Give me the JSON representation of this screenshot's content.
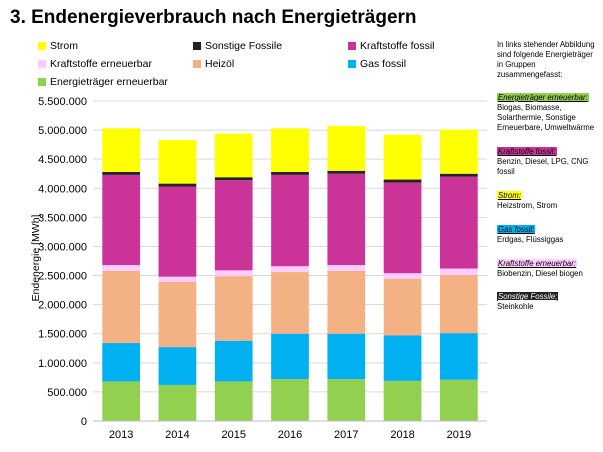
{
  "page": {
    "title": "3. Endenergieverbrauch nach Energieträgern"
  },
  "legend": [
    {
      "name": "Strom",
      "color": "#ffff00"
    },
    {
      "name": "Sonstige Fossile",
      "color": "#222222"
    },
    {
      "name": "Kraftstoffe fossil",
      "color": "#cc3399"
    },
    {
      "name": "Kraftstoffe erneuerbar",
      "color": "#ffccff"
    },
    {
      "name": "Heizöl",
      "color": "#f4b183"
    },
    {
      "name": "Gas fossil",
      "color": "#00b0f0"
    },
    {
      "name": "Energieträger erneuerbar",
      "color": "#92d050"
    }
  ],
  "side_panel": {
    "intro": "In links stehender Abbildung sind folgende Energieträger in Gruppen zusammengefasst:",
    "groups": [
      {
        "heading": "Energieträger erneuerbar:",
        "desc": "Biogas, Biomasse, Solarthermie, Sonstige Erneuerbare, Umweltwärme",
        "color": "#92d050",
        "text_color": "#000000"
      },
      {
        "heading": "Kraftstoffe fossil:",
        "desc": "Benzin, Diesel, LPG, CNG fossil",
        "color": "#cc3399",
        "text_color": "#000000"
      },
      {
        "heading": "Strom:",
        "desc": "Heizstrom, Strom",
        "color": "#ffff00",
        "text_color": "#000000"
      },
      {
        "heading": "Gas fossil:",
        "desc": "Erdgas, Flüssiggas",
        "color": "#00b0f0",
        "text_color": "#000000"
      },
      {
        "heading": "Kraftstoffe erneuerbar:",
        "desc": "Biobenzin, Diesel biogen",
        "color": "#ffccff",
        "text_color": "#000000"
      },
      {
        "heading": "Sonstige Fossile:",
        "desc": "Steinkohle",
        "color": "#222222",
        "text_color": "#ffffff"
      }
    ]
  },
  "chart_data": {
    "type": "bar",
    "stacked": true,
    "ylabel": "Endenergie [MWh]",
    "ylim": [
      0,
      5500000
    ],
    "yticks": [
      0,
      500000,
      1000000,
      1500000,
      2000000,
      2500000,
      3000000,
      3500000,
      4000000,
      4500000,
      5000000,
      5500000
    ],
    "ytick_labels": [
      "0",
      "500.000",
      "1.000.000",
      "1.500.000",
      "2.000.000",
      "2.500.000",
      "3.000.000",
      "3.500.000",
      "4.000.000",
      "4.500.000",
      "5.000.000",
      "5.500.000"
    ],
    "grid": true,
    "legend_position": "top",
    "categories": [
      "2013",
      "2014",
      "2015",
      "2016",
      "2017",
      "2018",
      "2019"
    ],
    "series": [
      {
        "name": "Energieträger erneuerbar",
        "color": "#92d050",
        "values": [
          680000,
          620000,
          680000,
          720000,
          720000,
          690000,
          710000
        ]
      },
      {
        "name": "Gas fossil",
        "color": "#00b0f0",
        "values": [
          660000,
          650000,
          700000,
          780000,
          780000,
          780000,
          800000
        ]
      },
      {
        "name": "Heizöl",
        "color": "#f4b183",
        "values": [
          1240000,
          1120000,
          1110000,
          1060000,
          1080000,
          970000,
          1000000
        ]
      },
      {
        "name": "Kraftstoffe erneuerbar",
        "color": "#ffccff",
        "values": [
          100000,
          90000,
          100000,
          100000,
          100000,
          100000,
          110000
        ]
      },
      {
        "name": "Kraftstoffe fossil",
        "color": "#cc3399",
        "values": [
          1550000,
          1550000,
          1550000,
          1570000,
          1570000,
          1560000,
          1580000
        ]
      },
      {
        "name": "Sonstige Fossile",
        "color": "#222222",
        "values": [
          50000,
          50000,
          50000,
          50000,
          50000,
          50000,
          50000
        ]
      },
      {
        "name": "Strom",
        "color": "#ffff00",
        "values": [
          750000,
          750000,
          750000,
          750000,
          770000,
          770000,
          760000
        ]
      }
    ]
  }
}
